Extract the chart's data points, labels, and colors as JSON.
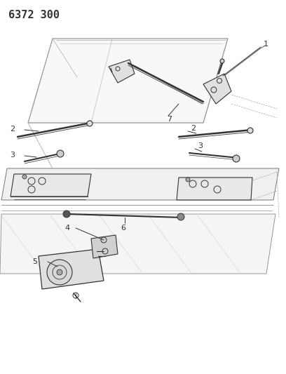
{
  "title": "6372 300",
  "bg_color": "#ffffff",
  "line_color": "#333333",
  "fig_width": 4.08,
  "fig_height": 5.33,
  "dpi": 100
}
